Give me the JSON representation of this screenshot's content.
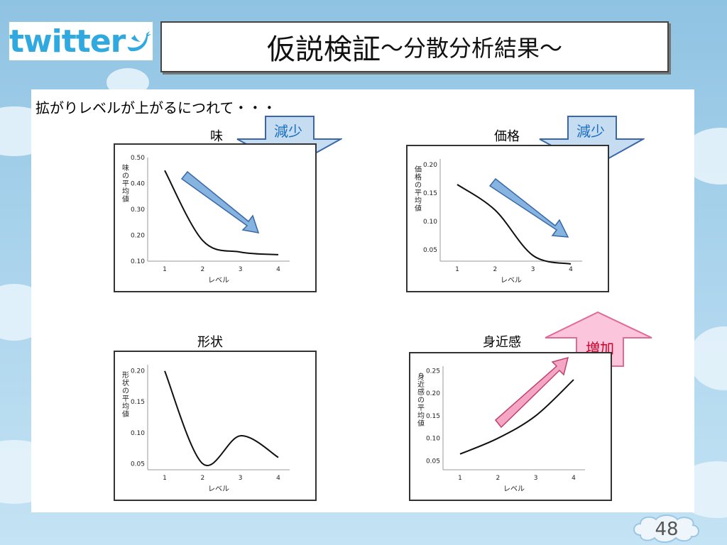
{
  "title": {
    "main": "仮説検証",
    "sub": "〜分散分析結果〜"
  },
  "subtitle": "拡がりレベルが上がるにつれて・・・",
  "logo": {
    "text": "twitter",
    "icon": "bird-icon"
  },
  "page_number": "48",
  "panels": [
    {
      "label": "味",
      "badge": "減少"
    },
    {
      "label": "価格",
      "badge": "減少"
    },
    {
      "label": "形状",
      "badge": ""
    },
    {
      "label": "身近感",
      "badge": "増加"
    }
  ],
  "colors": {
    "decrease_arrow": "#7fb0dc",
    "decrease_text": "#1a6fc0",
    "increase_arrow": "#f8b8d0",
    "increase_text": "#d0002a",
    "logo_blue": "#2fa9e0"
  },
  "chart_data": [
    {
      "type": "line",
      "x": [
        1,
        2,
        3,
        4
      ],
      "xlabel": "レベル",
      "ylabel": "味の平均値",
      "yticks": [
        "0.10",
        "0.20",
        "0.30",
        "0.40",
        "0.50"
      ],
      "xticks": [
        "1",
        "2",
        "3",
        "4"
      ],
      "ylim": [
        0.1,
        0.5
      ],
      "series": [
        {
          "values": [
            0.45,
            0.18,
            0.135,
            0.125
          ]
        }
      ]
    },
    {
      "type": "line",
      "x": [
        1,
        2,
        3,
        4
      ],
      "xlabel": "レベル",
      "ylabel": "価格の平均値",
      "yticks": [
        "0.05",
        "0.10",
        "0.15",
        "0.20"
      ],
      "xticks": [
        "1",
        "2",
        "3",
        "4"
      ],
      "ylim": [
        0.03,
        0.21
      ],
      "series": [
        {
          "values": [
            0.165,
            0.12,
            0.04,
            0.025
          ]
        }
      ]
    },
    {
      "type": "line",
      "x": [
        1,
        2,
        3,
        4
      ],
      "xlabel": "レベル",
      "ylabel": "形状の平均値",
      "yticks": [
        "0.05",
        "0.10",
        "0.15",
        "0.20"
      ],
      "xticks": [
        "1",
        "2",
        "3",
        "4"
      ],
      "ylim": [
        0.04,
        0.21
      ],
      "series": [
        {
          "values": [
            0.2,
            0.05,
            0.095,
            0.06
          ]
        }
      ]
    },
    {
      "type": "line",
      "x": [
        1,
        2,
        3,
        4
      ],
      "xlabel": "レベル",
      "ylabel": "身近感の平均値",
      "yticks": [
        "0.05",
        "0.10",
        "0.15",
        "0.20",
        "0.25"
      ],
      "xticks": [
        "1",
        "2",
        "3",
        "4"
      ],
      "ylim": [
        0.03,
        0.26
      ],
      "series": [
        {
          "values": [
            0.065,
            0.1,
            0.15,
            0.23
          ]
        }
      ]
    }
  ]
}
